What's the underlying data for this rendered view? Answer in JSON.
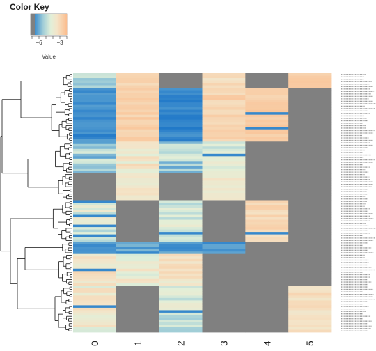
{
  "chart_data": {
    "type": "heatmap",
    "title": "",
    "color_key": {
      "title": "Color Key",
      "axis_label": "Value",
      "tick_labels": [
        "−6",
        "−3"
      ],
      "tick_values": [
        -6,
        -3
      ],
      "range": [
        -7.2,
        -2.0
      ],
      "missing_color": "#808080",
      "colors": [
        {
          "value": -7.2,
          "color": "#1f77c8"
        },
        {
          "value": -6.4,
          "color": "#4d98cf"
        },
        {
          "value": -5.3,
          "color": "#a8d2d8"
        },
        {
          "value": -4.3,
          "color": "#e2efd8"
        },
        {
          "value": -3.4,
          "color": "#f4e4c8"
        },
        {
          "value": -2.0,
          "color": "#fbbd8e"
        }
      ]
    },
    "columns": [
      "0",
      "1",
      "2",
      "3",
      "4",
      "5"
    ],
    "row_groups": [
      {
        "rows": 6,
        "values": [
          -5.0,
          -3.0,
          null,
          -3.2,
          null,
          -2.6
        ],
        "var": [
          0.9,
          0.4,
          0,
          0.4,
          0,
          0.3
        ]
      },
      {
        "rows": 22,
        "values": [
          -6.6,
          -2.7,
          -6.7,
          -2.8,
          -2.6,
          null
        ],
        "var": [
          0.5,
          0.4,
          0.5,
          0.4,
          0.3,
          0
        ]
      },
      {
        "rows": 13,
        "values": [
          -5.4,
          -3.6,
          -5.2,
          -4.4,
          null,
          null
        ],
        "var": [
          1.0,
          0.8,
          1.0,
          0.6,
          0,
          0
        ]
      },
      {
        "rows": 11,
        "values": [
          null,
          -3.6,
          null,
          -3.6,
          null,
          null
        ],
        "var": [
          0,
          0.4,
          0,
          0.4,
          0,
          0
        ]
      },
      {
        "rows": 17,
        "values": [
          -4.4,
          null,
          -4.6,
          null,
          -3.0,
          null
        ],
        "var": [
          0.8,
          0,
          0.8,
          0,
          0.4,
          0
        ]
      },
      {
        "rows": 5,
        "values": [
          -6.6,
          -6.2,
          -6.4,
          -6.4,
          null,
          null
        ],
        "var": [
          0.4,
          0.5,
          0.5,
          0.4,
          0,
          0
        ]
      },
      {
        "rows": 13,
        "values": [
          -3.4,
          -4.0,
          -3.6,
          null,
          null,
          null
        ],
        "var": [
          0.6,
          0.8,
          0.7,
          0,
          0,
          0
        ]
      },
      {
        "rows": 19,
        "values": [
          -3.8,
          null,
          -4.6,
          null,
          null,
          -3.2
        ],
        "var": [
          0.8,
          0,
          0.8,
          0,
          0,
          0.4
        ]
      }
    ]
  }
}
